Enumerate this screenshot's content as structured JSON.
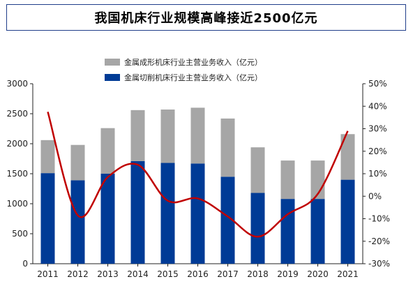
{
  "title": "我国机床行业规模高峰接近2500亿元",
  "colors": {
    "border": "#1f3d8a",
    "bar_forming": "#a6a6a6",
    "bar_cutting": "#003b96",
    "line": "#c00000",
    "axis": "#222222"
  },
  "legend": {
    "items": [
      {
        "label": "金属成形机床行业主营业务收入（亿元）",
        "color": "#a6a6a6"
      },
      {
        "label": "金属切削机床行业主营业务收入（亿元）",
        "color": "#003b96"
      }
    ],
    "placement": "top-center"
  },
  "chart_data": {
    "type": "bar",
    "stacked": true,
    "categories": [
      "2011",
      "2012",
      "2013",
      "2014",
      "2015",
      "2016",
      "2017",
      "2018",
      "2019",
      "2020",
      "2021"
    ],
    "series": [
      {
        "name": "金属切削机床行业主营业务收入（亿元）",
        "axis": "left",
        "values": [
          1510,
          1390,
          1500,
          1710,
          1680,
          1670,
          1450,
          1180,
          1080,
          1080,
          1400
        ]
      },
      {
        "name": "金属成形机床行业主营业务收入（亿元）",
        "axis": "left",
        "values": [
          550,
          590,
          760,
          850,
          890,
          930,
          970,
          760,
          640,
          640,
          760
        ]
      },
      {
        "name": "",
        "axis": "right",
        "type": "line",
        "values": [
          37.5,
          -8.5,
          8.5,
          14,
          -2,
          -1,
          -9,
          -18,
          -8,
          1,
          29
        ]
      }
    ],
    "ylim": [
      0,
      3000
    ],
    "y_ticks": [
      "0",
      "500",
      "1000",
      "1500",
      "2000",
      "2500",
      "3000"
    ],
    "y2lim": [
      -30,
      50
    ],
    "y2_ticks": [
      "-30%",
      "-20%",
      "-10%",
      "0%",
      "10%",
      "20%",
      "30%",
      "40%",
      "50%"
    ],
    "xlabel": "",
    "ylabel": "",
    "grid": false
  }
}
